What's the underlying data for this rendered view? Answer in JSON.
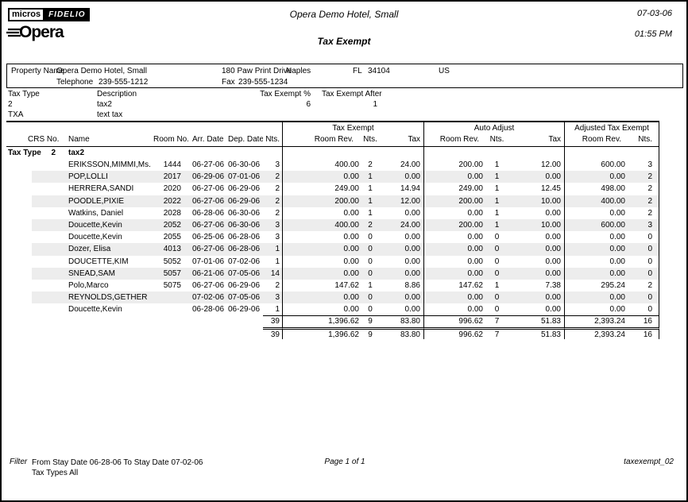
{
  "header": {
    "logo": {
      "micros": "micros",
      "fidelio": "FIDELIO",
      "opera": "Opera"
    },
    "hotel_name": "Opera Demo Hotel, Small",
    "date": "07-03-06",
    "time": "01:55 PM",
    "report_title": "Tax Exempt"
  },
  "property": {
    "label": "Property Name",
    "name": "Opera Demo Hotel, Small",
    "address": "180 Paw Print Drive",
    "city": "Naples",
    "state": "FL",
    "zip": "34104",
    "country": "US",
    "telephone_label": "Telephone",
    "telephone": "239-555-1212",
    "fax_label": "Fax",
    "fax": "239-555-1234"
  },
  "tax_types": {
    "headers": {
      "type": "Tax Type",
      "description": "Description",
      "exempt_pct": "Tax Exempt %",
      "exempt_after": "Tax Exempt After"
    },
    "rows": [
      {
        "type": "2",
        "description": "tax2",
        "exempt_pct": "6",
        "exempt_after": "1"
      },
      {
        "type": "TXA",
        "description": "text tax",
        "exempt_pct": "",
        "exempt_after": ""
      }
    ]
  },
  "table": {
    "group_headers": [
      "",
      "Tax Exempt",
      "Auto Adjust",
      "Adjusted Tax Exempt"
    ],
    "column_headers": [
      "CRS No.",
      "Name",
      "Room No.",
      "Arr. Date",
      "Dep. Date",
      "Nts.",
      "Room Rev.",
      "Nts.",
      "Tax",
      "Room Rev.",
      "Nts.",
      "Tax",
      "Room Rev.",
      "Nts."
    ],
    "section": {
      "label": "Tax Type",
      "code": "2",
      "name": "tax2"
    },
    "rows": [
      [
        "",
        "ERIKSSON,MIMMI,Ms.",
        "1444",
        "06-27-06",
        "06-30-06",
        "3",
        "400.00",
        "2",
        "24.00",
        "200.00",
        "1",
        "12.00",
        "600.00",
        "3"
      ],
      [
        "",
        "POP,LOLLI",
        "2017",
        "06-29-06",
        "07-01-06",
        "2",
        "0.00",
        "1",
        "0.00",
        "0.00",
        "1",
        "0.00",
        "0.00",
        "2"
      ],
      [
        "",
        "HERRERA,SANDI",
        "2020",
        "06-27-06",
        "06-29-06",
        "2",
        "249.00",
        "1",
        "14.94",
        "249.00",
        "1",
        "12.45",
        "498.00",
        "2"
      ],
      [
        "",
        "POODLE,PIXIE",
        "2022",
        "06-27-06",
        "06-29-06",
        "2",
        "200.00",
        "1",
        "12.00",
        "200.00",
        "1",
        "10.00",
        "400.00",
        "2"
      ],
      [
        "",
        "Watkins, Daniel",
        "2028",
        "06-28-06",
        "06-30-06",
        "2",
        "0.00",
        "1",
        "0.00",
        "0.00",
        "1",
        "0.00",
        "0.00",
        "2"
      ],
      [
        "",
        "Doucette,Kevin",
        "2052",
        "06-27-06",
        "06-30-06",
        "3",
        "400.00",
        "2",
        "24.00",
        "200.00",
        "1",
        "10.00",
        "600.00",
        "3"
      ],
      [
        "",
        "Doucette,Kevin",
        "2055",
        "06-25-06",
        "06-28-06",
        "3",
        "0.00",
        "0",
        "0.00",
        "0.00",
        "0",
        "0.00",
        "0.00",
        "0"
      ],
      [
        "",
        "Dozer, Elisa",
        "4013",
        "06-27-06",
        "06-28-06",
        "1",
        "0.00",
        "0",
        "0.00",
        "0.00",
        "0",
        "0.00",
        "0.00",
        "0"
      ],
      [
        "",
        "DOUCETTE,KIM",
        "5052",
        "07-01-06",
        "07-02-06",
        "1",
        "0.00",
        "0",
        "0.00",
        "0.00",
        "0",
        "0.00",
        "0.00",
        "0"
      ],
      [
        "",
        "SNEAD,SAM",
        "5057",
        "06-21-06",
        "07-05-06",
        "14",
        "0.00",
        "0",
        "0.00",
        "0.00",
        "0",
        "0.00",
        "0.00",
        "0"
      ],
      [
        "",
        "Polo,Marco",
        "5075",
        "06-27-06",
        "06-29-06",
        "2",
        "147.62",
        "1",
        "8.86",
        "147.62",
        "1",
        "7.38",
        "295.24",
        "2"
      ],
      [
        "",
        "REYNOLDS,GETHER",
        "",
        "07-02-06",
        "07-05-06",
        "3",
        "0.00",
        "0",
        "0.00",
        "0.00",
        "0",
        "0.00",
        "0.00",
        "0"
      ],
      [
        "",
        "Doucette,Kevin",
        "",
        "06-28-06",
        "06-29-06",
        "1",
        "0.00",
        "0",
        "0.00",
        "0.00",
        "0",
        "0.00",
        "0.00",
        "0"
      ]
    ],
    "subtotal": [
      "",
      "",
      "",
      "",
      "",
      "39",
      "1,396.62",
      "9",
      "83.80",
      "996.62",
      "7",
      "51.83",
      "2,393.24",
      "16"
    ],
    "grand_total": [
      "",
      "",
      "",
      "",
      "",
      "39",
      "1,396.62",
      "9",
      "83.80",
      "996.62",
      "7",
      "51.83",
      "2,393.24",
      "16"
    ]
  },
  "footer": {
    "filter_label": "Filter",
    "filter_line1": "From Stay Date 06-28-06   To Stay Date 07-02-06",
    "filter_line2": "Tax Types All",
    "page_info": "Page 1 of 1",
    "report_id": "taxexempt_02"
  }
}
